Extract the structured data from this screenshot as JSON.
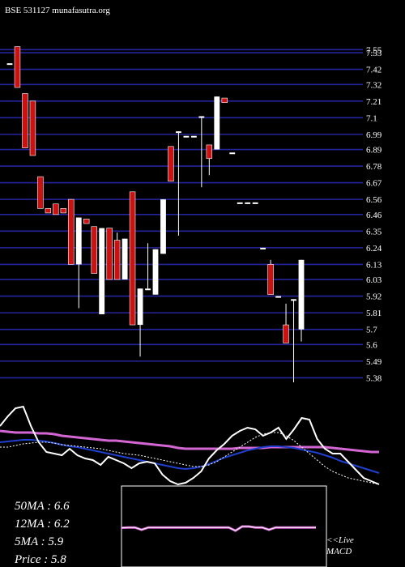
{
  "header": {
    "title": "BSE 531127 munafasutra.org"
  },
  "colors": {
    "background": "#000000",
    "grid": "#24249e",
    "up": "#ffffff",
    "down": "#cc1111",
    "wick": "#ffffff",
    "ma_slow": "#d466d4",
    "ma_mid": "#1f3fcf",
    "macd_line": "#ffffff"
  },
  "chart_data": [
    {
      "type": "candlestick",
      "title": "",
      "y_ticks": [
        7.55,
        7.53,
        7.42,
        7.32,
        7.21,
        7.1,
        6.99,
        6.89,
        6.78,
        6.67,
        6.56,
        6.46,
        6.35,
        6.24,
        6.13,
        6.03,
        5.92,
        5.81,
        5.7,
        5.6,
        5.49,
        5.38
      ],
      "ylim": [
        5.35,
        7.6
      ],
      "grid": true,
      "candles": [
        {
          "o": 7.46,
          "h": 7.46,
          "l": 7.46,
          "c": 7.46
        },
        {
          "o": 7.57,
          "h": 7.57,
          "l": 7.3,
          "c": 7.3
        },
        {
          "o": 7.26,
          "h": 7.26,
          "l": 6.9,
          "c": 6.9
        },
        {
          "o": 7.21,
          "h": 7.21,
          "l": 6.85,
          "c": 6.85
        },
        {
          "o": 6.71,
          "h": 6.71,
          "l": 6.5,
          "c": 6.5
        },
        {
          "o": 6.5,
          "h": 6.5,
          "l": 6.47,
          "c": 6.47
        },
        {
          "o": 6.53,
          "h": 6.53,
          "l": 6.46,
          "c": 6.46
        },
        {
          "o": 6.5,
          "h": 6.5,
          "l": 6.47,
          "c": 6.47
        },
        {
          "o": 6.56,
          "h": 6.56,
          "l": 6.13,
          "c": 6.13
        },
        {
          "o": 6.13,
          "h": 6.44,
          "l": 5.84,
          "c": 6.44
        },
        {
          "o": 6.43,
          "h": 6.43,
          "l": 6.4,
          "c": 6.4
        },
        {
          "o": 6.38,
          "h": 6.38,
          "l": 6.07,
          "c": 6.07
        },
        {
          "o": 5.8,
          "h": 6.37,
          "l": 5.8,
          "c": 6.37
        },
        {
          "o": 6.37,
          "h": 6.37,
          "l": 6.03,
          "c": 6.03
        },
        {
          "o": 6.29,
          "h": 6.34,
          "l": 6.03,
          "c": 6.03
        },
        {
          "o": 6.03,
          "h": 6.3,
          "l": 6.03,
          "c": 6.3
        },
        {
          "o": 6.61,
          "h": 6.61,
          "l": 5.73,
          "c": 5.73
        },
        {
          "o": 5.73,
          "h": 5.97,
          "l": 5.52,
          "c": 5.97
        },
        {
          "o": 5.97,
          "h": 6.27,
          "l": 5.97,
          "c": 5.97
        },
        {
          "o": 5.93,
          "h": 6.23,
          "l": 5.93,
          "c": 6.23
        },
        {
          "o": 6.2,
          "h": 6.56,
          "l": 6.2,
          "c": 6.56
        },
        {
          "o": 6.91,
          "h": 6.91,
          "l": 6.68,
          "c": 6.68
        },
        {
          "o": 7.01,
          "h": 7.01,
          "l": 6.32,
          "c": 7.01
        },
        {
          "o": 6.98,
          "h": 6.98,
          "l": 6.98,
          "c": 6.98
        },
        {
          "o": 6.98,
          "h": 6.98,
          "l": 6.98,
          "c": 6.98
        },
        {
          "o": 7.11,
          "h": 7.11,
          "l": 6.64,
          "c": 7.11
        },
        {
          "o": 6.92,
          "h": 6.92,
          "l": 6.72,
          "c": 6.83
        },
        {
          "o": 6.89,
          "h": 7.24,
          "l": 6.89,
          "c": 7.24
        },
        {
          "o": 7.23,
          "h": 7.23,
          "l": 7.2,
          "c": 7.2
        },
        {
          "o": 6.87,
          "h": 6.87,
          "l": 6.87,
          "c": 6.87
        },
        {
          "o": 6.54,
          "h": 6.54,
          "l": 6.54,
          "c": 6.54
        },
        {
          "o": 6.54,
          "h": 6.54,
          "l": 6.54,
          "c": 6.54
        },
        {
          "o": 6.54,
          "h": 6.54,
          "l": 6.54,
          "c": 6.54
        },
        {
          "o": 6.24,
          "h": 6.24,
          "l": 6.24,
          "c": 6.24
        },
        {
          "o": 6.13,
          "h": 6.16,
          "l": 5.93,
          "c": 5.93
        },
        {
          "o": 5.92,
          "h": 5.92,
          "l": 5.92,
          "c": 5.92
        },
        {
          "o": 5.73,
          "h": 5.87,
          "l": 5.61,
          "c": 5.61
        },
        {
          "o": 5.9,
          "h": 5.9,
          "l": 5.35,
          "c": 5.9
        },
        {
          "o": 5.7,
          "h": 6.16,
          "l": 5.62,
          "c": 6.16
        }
      ]
    },
    {
      "type": "line",
      "title": "",
      "ylim": [
        0,
        100
      ],
      "series": [
        {
          "key": "ma_slow",
          "values": [
            68,
            67,
            66,
            66,
            66,
            65,
            65,
            64,
            62,
            61,
            60,
            59,
            58,
            57,
            56,
            56,
            55,
            54,
            53,
            52,
            51,
            50,
            49,
            47,
            46,
            46,
            46,
            46,
            46,
            46,
            46,
            47,
            47,
            47,
            47,
            48,
            48,
            48,
            48,
            48,
            48,
            48,
            48,
            47,
            46,
            45,
            44,
            43,
            42,
            42
          ]
        },
        {
          "key": "ma_mid",
          "values": [
            54,
            55,
            56,
            57,
            57,
            56,
            55,
            53,
            51,
            49,
            48,
            46,
            44,
            42,
            40,
            38,
            36,
            34,
            32,
            30,
            28,
            26,
            24,
            22,
            21,
            22,
            24,
            27,
            31,
            35,
            38,
            41,
            44,
            46,
            48,
            49,
            49,
            48,
            47,
            45,
            43,
            41,
            38,
            35,
            31,
            28,
            25,
            22,
            19,
            16
          ]
        },
        {
          "key": "macd_line",
          "values": [
            48,
            48,
            50,
            52,
            53,
            54,
            54,
            53,
            51,
            50,
            49,
            48,
            47,
            46,
            44,
            42,
            40,
            39,
            38,
            36,
            34,
            32,
            30,
            28,
            26,
            24,
            24,
            26,
            30,
            36,
            42,
            48,
            54,
            60,
            64,
            66,
            66,
            62,
            56,
            48,
            40,
            32,
            24,
            18,
            14,
            10,
            8,
            6,
            4,
            2
          ]
        },
        {
          "key": "price_line",
          "values": [
            74,
            86,
            96,
            98,
            74,
            54,
            42,
            40,
            38,
            46,
            38,
            34,
            32,
            26,
            36,
            32,
            28,
            22,
            28,
            30,
            28,
            14,
            6,
            2,
            4,
            10,
            18,
            34,
            44,
            52,
            62,
            68,
            72,
            70,
            62,
            66,
            72,
            58,
            70,
            84,
            82,
            58,
            46,
            40,
            40,
            30,
            20,
            10,
            6,
            2
          ]
        }
      ]
    },
    {
      "type": "line",
      "title": "",
      "ylim": [
        -1,
        1
      ],
      "series": [
        {
          "key": "macd_flat",
          "values": [
            0.01,
            0.02,
            0.02,
            -0.05,
            0.02,
            0.02,
            0.02,
            0.02,
            0.02,
            0.02,
            0.02,
            0.02,
            0.02,
            0.02,
            0.02,
            0.02,
            0.02,
            -0.08,
            0.05,
            0.05,
            0.02,
            0.02,
            -0.05,
            0.02,
            0.02,
            0.02,
            0.02,
            0.02,
            0.02,
            0.02
          ]
        }
      ]
    }
  ],
  "indicators": [
    {
      "label": "50MA : 6.6"
    },
    {
      "label": "12MA : 6.2"
    },
    {
      "label": "5MA : 5.9"
    },
    {
      "label": "Price   : 5.8"
    }
  ],
  "live": {
    "line1": "<<Live",
    "line2": "MACD"
  }
}
